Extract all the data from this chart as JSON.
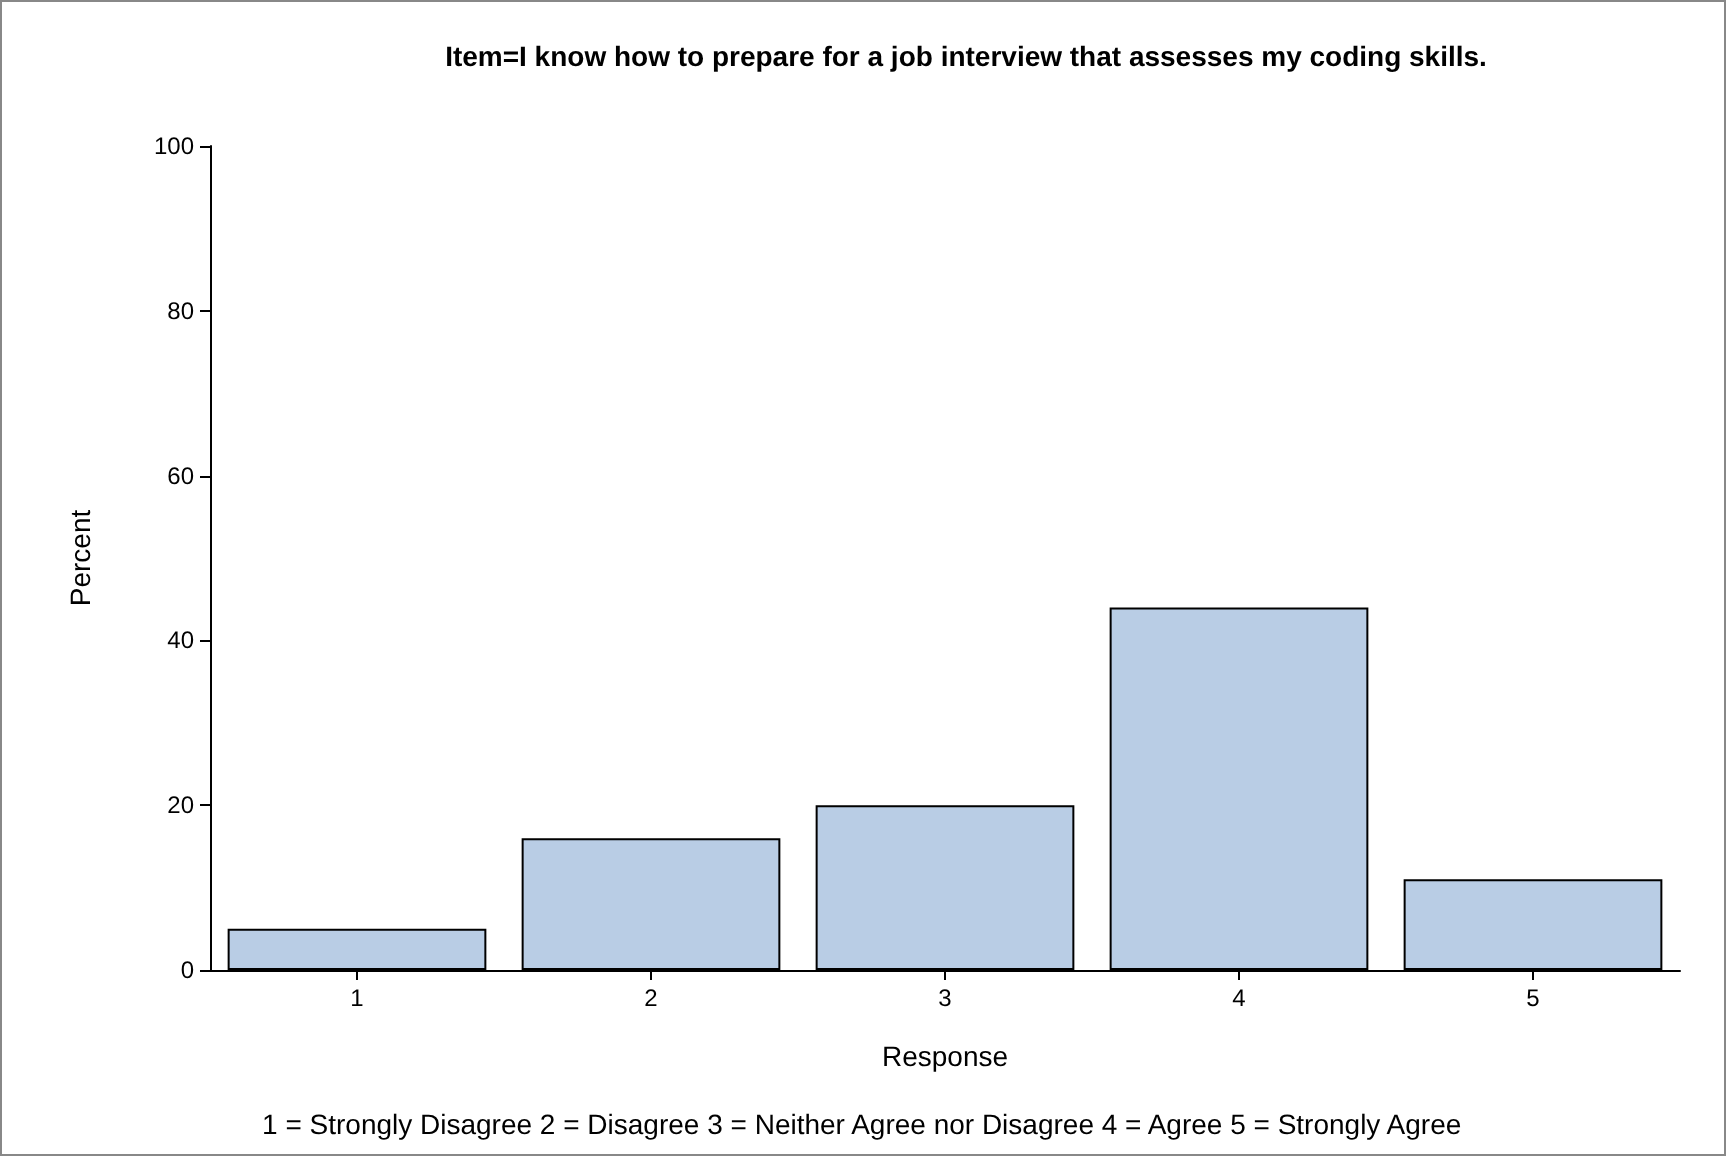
{
  "chart_data": {
    "type": "bar",
    "title": "Item=I know how to prepare for a job interview that assesses my coding skills.",
    "xlabel": "Response",
    "ylabel": "Percent",
    "categories": [
      "1",
      "2",
      "3",
      "4",
      "5"
    ],
    "values": [
      5,
      16,
      20,
      44,
      11
    ],
    "color": "#b9cde5",
    "ylim": [
      0,
      100
    ],
    "yticks": [
      0,
      20,
      40,
      60,
      80,
      100
    ],
    "grid": false,
    "annotations": [
      "1 = Strongly Disagree 2 = Disagree 3 = Neither Agree nor Disagree 4 = Agree 5 = Strongly Agree"
    ]
  }
}
